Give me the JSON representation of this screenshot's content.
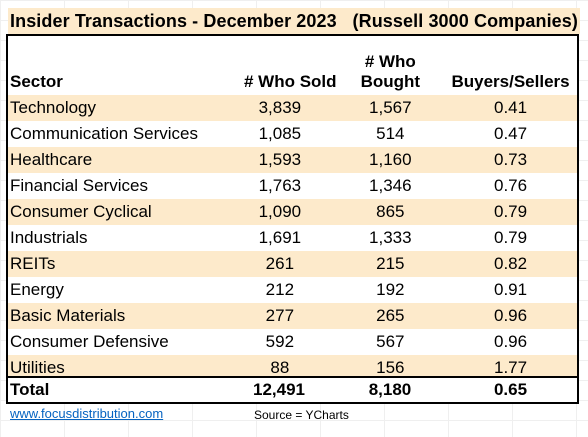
{
  "title": {
    "left": "Insider Transactions - December 2023",
    "right": "(Russell 3000 Companies)"
  },
  "columns": {
    "sector": "Sector",
    "sold": "# Who Sold",
    "bought_line1": "# Who",
    "bought_line2": "Bought",
    "ratio": "Buyers/Sellers"
  },
  "rows": [
    {
      "sector": "Technology",
      "sold": "3,839",
      "bought": "1,567",
      "ratio": "0.41"
    },
    {
      "sector": "Communication Services",
      "sold": "1,085",
      "bought": "514",
      "ratio": "0.47"
    },
    {
      "sector": "Healthcare",
      "sold": "1,593",
      "bought": "1,160",
      "ratio": "0.73"
    },
    {
      "sector": "Financial Services",
      "sold": "1,763",
      "bought": "1,346",
      "ratio": "0.76"
    },
    {
      "sector": "Consumer Cyclical",
      "sold": "1,090",
      "bought": "865",
      "ratio": "0.79"
    },
    {
      "sector": "Industrials",
      "sold": "1,691",
      "bought": "1,333",
      "ratio": "0.79"
    },
    {
      "sector": "REITs",
      "sold": "261",
      "bought": "215",
      "ratio": "0.82"
    },
    {
      "sector": "Energy",
      "sold": "212",
      "bought": "192",
      "ratio": "0.91"
    },
    {
      "sector": "Basic Materials",
      "sold": "277",
      "bought": "265",
      "ratio": "0.96"
    },
    {
      "sector": "Consumer Defensive",
      "sold": "592",
      "bought": "567",
      "ratio": "0.96"
    },
    {
      "sector": "Utilities",
      "sold": "88",
      "bought": "156",
      "ratio": "1.77"
    }
  ],
  "total": {
    "label": "Total",
    "sold": "12,491",
    "bought": "8,180",
    "ratio": "0.65"
  },
  "footer": {
    "link": "www.focusdistribution.com",
    "source": "Source = YCharts"
  },
  "colors": {
    "shade": "#fdeacb",
    "link": "#0563c1"
  }
}
